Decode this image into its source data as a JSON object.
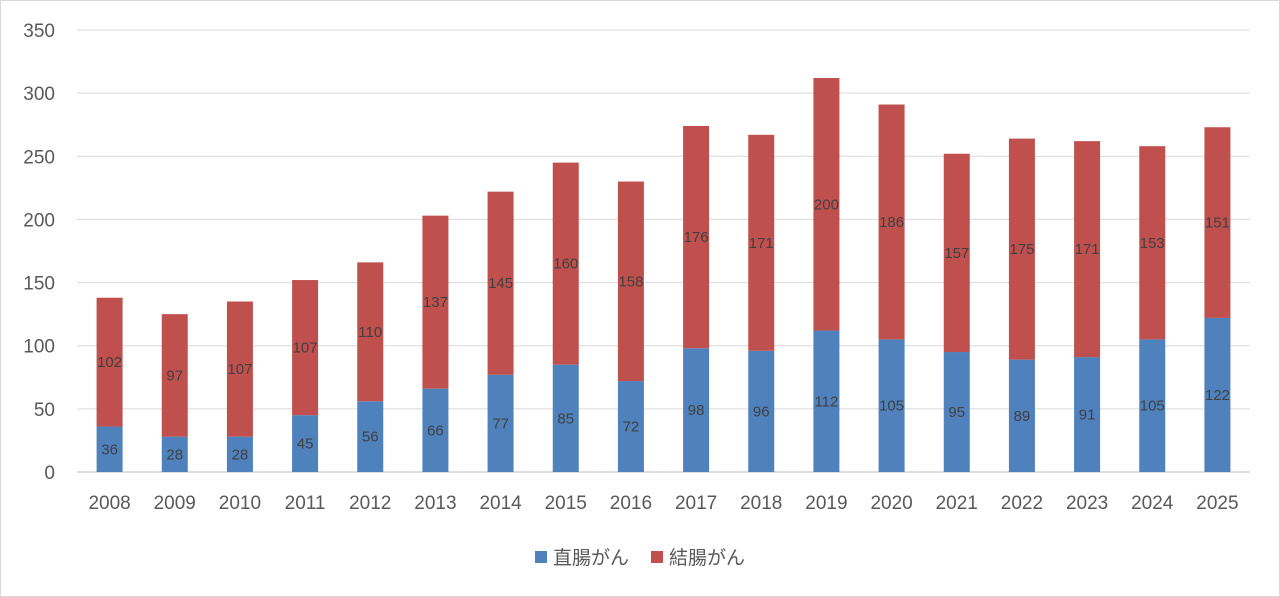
{
  "chart_data": {
    "type": "bar",
    "stacked": true,
    "categories": [
      "2008",
      "2009",
      "2010",
      "2011",
      "2012",
      "2013",
      "2014",
      "2015",
      "2016",
      "2017",
      "2018",
      "2019",
      "2020",
      "2021",
      "2022",
      "2023",
      "2024",
      "2025"
    ],
    "series": [
      {
        "name": "直腸がん",
        "color": "#4f81bd",
        "values": [
          36,
          28,
          28,
          45,
          56,
          66,
          77,
          85,
          72,
          98,
          96,
          112,
          105,
          95,
          89,
          91,
          105,
          122
        ]
      },
      {
        "name": "結腸がん",
        "color": "#c0504d",
        "values": [
          102,
          97,
          107,
          107,
          110,
          137,
          145,
          160,
          158,
          176,
          171,
          200,
          186,
          157,
          175,
          171,
          153,
          151
        ]
      }
    ],
    "ylim": [
      0,
      350
    ],
    "yticks": [
      0,
      50,
      100,
      150,
      200,
      250,
      300,
      350
    ],
    "grid": true,
    "legend_position": "bottom",
    "title": "",
    "xlabel": "",
    "ylabel": ""
  }
}
